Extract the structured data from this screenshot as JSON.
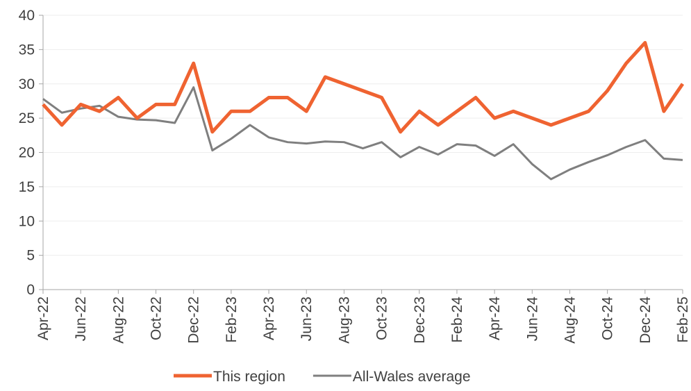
{
  "chart_data": {
    "type": "line",
    "categories": [
      "Apr-22",
      null,
      "Jun-22",
      null,
      "Aug-22",
      null,
      "Oct-22",
      null,
      "Dec-22",
      null,
      "Feb-23",
      null,
      "Apr-23",
      null,
      "Jun-23",
      null,
      "Aug-23",
      null,
      "Oct-23",
      null,
      "Dec-23",
      null,
      "Feb-24",
      null,
      "Apr-24",
      null,
      "Jun-24",
      null,
      "Aug-24",
      null,
      "Oct-24",
      null,
      "Dec-24",
      null,
      "Feb-25"
    ],
    "series": [
      {
        "name": "This region",
        "color": "#ef6331",
        "values": [
          27,
          24,
          27,
          26,
          28,
          25,
          27,
          27,
          33,
          23,
          26,
          26,
          28,
          28,
          26,
          31,
          30,
          29,
          28,
          23,
          26,
          24,
          26,
          28,
          25,
          26,
          25,
          24,
          25,
          26,
          29,
          33,
          36,
          26,
          30
        ]
      },
      {
        "name": "All-Wales average",
        "color": "#7f7f7f",
        "values": [
          27.8,
          25.8,
          26.4,
          26.8,
          25.2,
          24.8,
          24.7,
          24.3,
          29.5,
          20.3,
          22.0,
          24.0,
          22.2,
          21.5,
          21.3,
          21.6,
          21.5,
          20.6,
          21.5,
          19.3,
          20.8,
          19.7,
          21.2,
          21.0,
          19.5,
          21.2,
          18.3,
          16.1,
          17.5,
          18.6,
          19.6,
          20.8,
          21.8,
          19.1,
          18.9
        ]
      }
    ],
    "ylim": [
      0,
      40
    ],
    "yticks": [
      0,
      5,
      10,
      15,
      20,
      25,
      30,
      35,
      40
    ],
    "grid": true,
    "legend": "bottom"
  }
}
